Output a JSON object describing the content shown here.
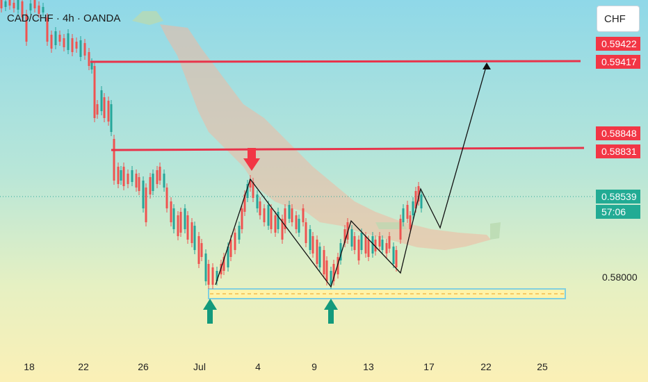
{
  "chart": {
    "title": "CAD/CHF · 4h · OANDA",
    "currency": "CHF"
  },
  "price_axis": {
    "tick_label": "0.58000",
    "badges": [
      {
        "price": "0.59422",
        "color": "#f23645"
      },
      {
        "price": "0.59417",
        "color": "#f23645"
      },
      {
        "price": "0.58848",
        "color": "#f23645"
      },
      {
        "price": "0.58831",
        "color": "#f23645"
      },
      {
        "price": "0.58539",
        "color": "#22ab94"
      },
      {
        "price": "57:06",
        "color": "#22ab94"
      }
    ]
  },
  "time_axis": {
    "labels": [
      "18",
      "22",
      "26",
      "Jul",
      "4",
      "9",
      "13",
      "17",
      "22",
      "25"
    ]
  },
  "colors": {
    "up": "#26a69a",
    "down": "#ef5350",
    "resistance": "#e8334a",
    "support_zone": "#fff3a8",
    "arrow_up": "#139a7c",
    "arrow_down": "#f23645"
  },
  "chart_data": {
    "type": "candlestick",
    "symbol": "CAD/CHF",
    "timeframe": "4h",
    "levels": [
      0.59417,
      0.58831
    ],
    "current_price": 0.58539,
    "support": 0.5796
  }
}
